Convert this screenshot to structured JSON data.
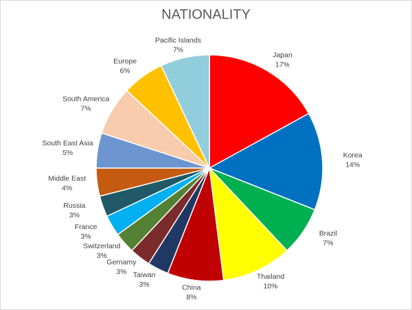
{
  "chart_data": {
    "type": "pie",
    "title": "NATIONALITY",
    "categories": [
      "Japan",
      "Korea",
      "Brazil",
      "Thailand",
      "China",
      "Taiwan",
      "Gernamy",
      "Switzerland",
      "France",
      "Russia",
      "Middle East",
      "South East Asia",
      "South America",
      "Europe",
      "Pacific Islands"
    ],
    "values": [
      17,
      14,
      7,
      10,
      8,
      3,
      3,
      3,
      3,
      3,
      4,
      5,
      7,
      6,
      7
    ],
    "value_labels": [
      "17%",
      "14%",
      "7%",
      "10%",
      "8%",
      "3%",
      "3%",
      "3%",
      "3%",
      "3%",
      "4%",
      "5%",
      "7%",
      "6%",
      "7%"
    ],
    "colors": [
      "#ff0000",
      "#0070c0",
      "#00b050",
      "#ffff00",
      "#c00000",
      "#203864",
      "#7b2b2b",
      "#548235",
      "#00b0f0",
      "#215967",
      "#c55a11",
      "#6d95cf",
      "#f8cbad",
      "#ffc000",
      "#92cddc"
    ]
  }
}
